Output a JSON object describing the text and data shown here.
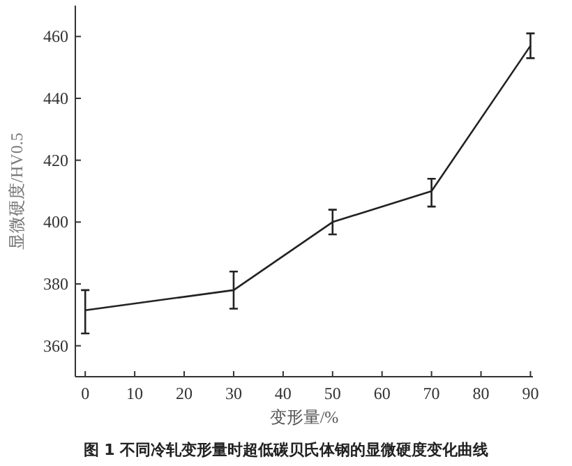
{
  "chart_data": {
    "type": "line",
    "title": "图 1  不同冷轧变形量时超低碳贝氏体钢的显微硬度变化曲线",
    "xlabel": "变形量/%",
    "ylabel": "显微硬度/HV0.5",
    "x": [
      0,
      30,
      50,
      70,
      90
    ],
    "series": [
      {
        "color": "#222222",
        "values": [
          371.5,
          378,
          400,
          410,
          457
        ],
        "errors": [
          [
            364,
            378
          ],
          [
            372,
            384
          ],
          [
            396,
            404
          ],
          [
            405,
            414
          ],
          [
            453,
            461
          ]
        ]
      }
    ],
    "xlim": [
      -2,
      90.5
    ],
    "ylim": [
      350,
      470
    ],
    "xticks": [
      0,
      10,
      20,
      30,
      40,
      50,
      60,
      70,
      80,
      90
    ],
    "yticks": [
      360,
      380,
      400,
      420,
      440,
      460
    ],
    "grid": false,
    "marker": "none",
    "line_style": "solid"
  }
}
